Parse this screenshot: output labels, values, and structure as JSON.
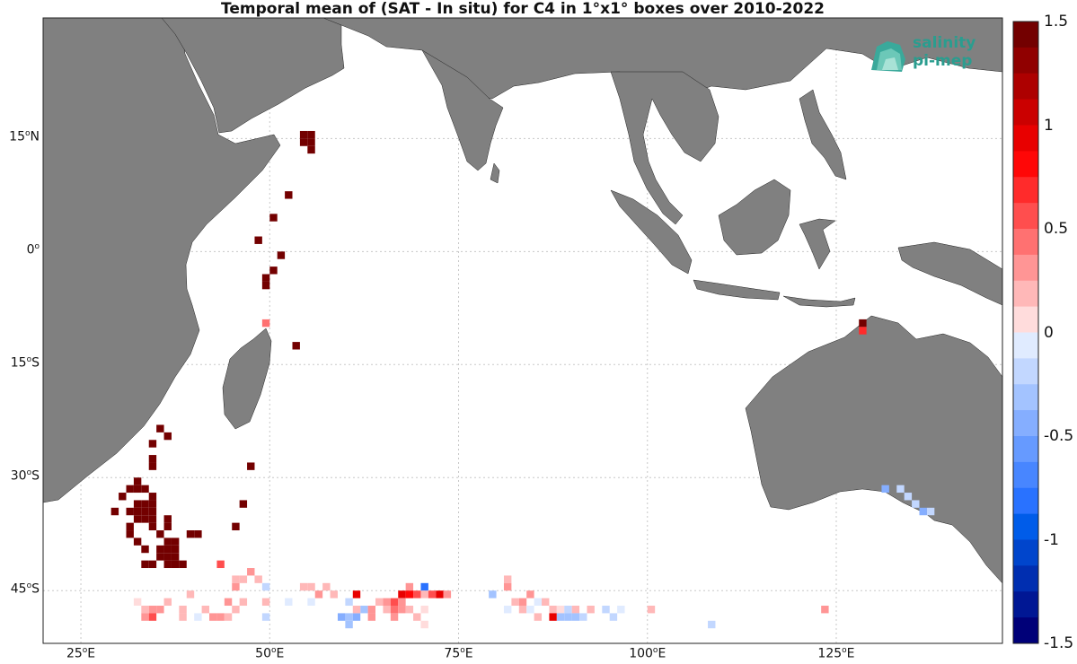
{
  "title": "Temporal mean of (SAT - In situ) for C4 in 1°x1° boxes over 2010-2022",
  "logo": {
    "line1": "salinity",
    "line2": "pi-mep",
    "color": "#2a9d8f"
  },
  "colors": {
    "land": "#808080",
    "ocean": "#ffffff",
    "grid": "#c8c8c8"
  },
  "map": {
    "lon_range": [
      20,
      147
    ],
    "lat_range": [
      -52,
      31
    ],
    "lon_ticks": [
      {
        "value": 25,
        "num": "25",
        "unit": "E"
      },
      {
        "value": 50,
        "num": "50",
        "unit": "E"
      },
      {
        "value": 75,
        "num": "75",
        "unit": "E"
      },
      {
        "value": 100,
        "num": "100",
        "unit": "E"
      },
      {
        "value": 125,
        "num": "125",
        "unit": "E"
      }
    ],
    "lat_ticks": [
      {
        "value": 15,
        "num": "15",
        "unit": "N"
      },
      {
        "value": 0,
        "num": "0",
        "unit": ""
      },
      {
        "value": -15,
        "num": "15",
        "unit": "S"
      },
      {
        "value": -30,
        "num": "30",
        "unit": "S"
      },
      {
        "value": -45,
        "num": "45",
        "unit": "S"
      }
    ],
    "degree_symbol": "o"
  },
  "colorbar": {
    "range": [
      -1.5,
      1.5
    ],
    "ticks": [
      "1.5",
      "1",
      "0.5",
      "0",
      "-0.5",
      "-1",
      "-1.5"
    ],
    "tick_values": [
      1.5,
      1,
      0.5,
      0,
      -0.5,
      -1,
      -1.5
    ],
    "levels": 24
  },
  "chart_data": {
    "type": "heatmap",
    "title": "Temporal mean of (SAT - In situ) for C4 in 1°x1° boxes over 2010-2022",
    "cells": [
      [
        54,
        15,
        1.5
      ],
      [
        55,
        15,
        1.5
      ],
      [
        55,
        14,
        1.5
      ],
      [
        54,
        14,
        1.5
      ],
      [
        55,
        13,
        1.5
      ],
      [
        52,
        7,
        1.5
      ],
      [
        50,
        4,
        1.5
      ],
      [
        48,
        1,
        1.5
      ],
      [
        51,
        -1,
        1.5
      ],
      [
        49,
        -4,
        1.5
      ],
      [
        49,
        -5,
        1.5
      ],
      [
        50,
        -3,
        1.5
      ],
      [
        49,
        -10,
        0.4
      ],
      [
        53,
        -13,
        1.5
      ],
      [
        128,
        -10,
        1.5
      ],
      [
        128,
        -11,
        0.7
      ],
      [
        35,
        -24,
        1.5
      ],
      [
        36,
        -25,
        1.5
      ],
      [
        34,
        -26,
        1.5
      ],
      [
        34,
        -28,
        1.5
      ],
      [
        34,
        -29,
        1.5
      ],
      [
        47,
        -29,
        1.5
      ],
      [
        32,
        -31,
        1.5
      ],
      [
        31,
        -32,
        1.5
      ],
      [
        32,
        -32,
        1.5
      ],
      [
        33,
        -32,
        1.5
      ],
      [
        30,
        -33,
        1.5
      ],
      [
        34,
        -33,
        1.5
      ],
      [
        32,
        -34,
        1.5
      ],
      [
        33,
        -34,
        1.5
      ],
      [
        34,
        -34,
        1.5
      ],
      [
        46,
        -34,
        1.5
      ],
      [
        29,
        -35,
        1.5
      ],
      [
        31,
        -35,
        1.5
      ],
      [
        32,
        -35,
        1.5
      ],
      [
        33,
        -35,
        1.5
      ],
      [
        34,
        -35,
        1.5
      ],
      [
        32,
        -36,
        1.5
      ],
      [
        33,
        -36,
        1.5
      ],
      [
        34,
        -36,
        1.5
      ],
      [
        36,
        -36,
        1.5
      ],
      [
        31,
        -37,
        1.5
      ],
      [
        34,
        -37,
        1.5
      ],
      [
        36,
        -37,
        1.5
      ],
      [
        45,
        -37,
        1.5
      ],
      [
        31,
        -38,
        1.5
      ],
      [
        39,
        -38,
        1.5
      ],
      [
        40,
        -38,
        1.5
      ],
      [
        35,
        -38,
        1.5
      ],
      [
        32,
        -39,
        1.5
      ],
      [
        36,
        -39,
        1.5
      ],
      [
        37,
        -39,
        1.5
      ],
      [
        35,
        -40,
        1.5
      ],
      [
        36,
        -40,
        1.5
      ],
      [
        37,
        -40,
        1.5
      ],
      [
        33,
        -40,
        1.5
      ],
      [
        35,
        -41,
        1.5
      ],
      [
        36,
        -41,
        1.5
      ],
      [
        37,
        -41,
        1.5
      ],
      [
        33,
        -42,
        1.5
      ],
      [
        34,
        -42,
        1.5
      ],
      [
        36,
        -42,
        1.5
      ],
      [
        37,
        -42,
        1.5
      ],
      [
        38,
        -42,
        1.5
      ],
      [
        43,
        -42,
        0.5
      ],
      [
        47,
        -43,
        0.3
      ],
      [
        46,
        -44,
        0.2
      ],
      [
        45,
        -44,
        0.15
      ],
      [
        48,
        -44,
        0.2
      ],
      [
        45,
        -45,
        0.3
      ],
      [
        49,
        -45,
        -0.15
      ],
      [
        55,
        -45,
        0.2
      ],
      [
        54,
        -45,
        0.15
      ],
      [
        57,
        -45,
        0.2
      ],
      [
        61,
        -46,
        0.9
      ],
      [
        58,
        -46,
        0.2
      ],
      [
        56,
        -46,
        0.3
      ],
      [
        68,
        -45,
        0.3
      ],
      [
        70,
        -45,
        -0.8
      ],
      [
        67,
        -46,
        0.9
      ],
      [
        68,
        -46,
        0.8
      ],
      [
        69,
        -46,
        0.5
      ],
      [
        70,
        -46,
        0.2
      ],
      [
        71,
        -46,
        0.5
      ],
      [
        72,
        -46,
        0.9
      ],
      [
        73,
        -46,
        0.3
      ],
      [
        81,
        -44,
        0.15
      ],
      [
        81,
        -45,
        0.25
      ],
      [
        79,
        -46,
        -0.35
      ],
      [
        84,
        -46,
        0.25
      ],
      [
        39,
        -46,
        0.2
      ],
      [
        32,
        -47,
        0.1
      ],
      [
        33,
        -48,
        0.15
      ],
      [
        34,
        -48,
        0.3
      ],
      [
        35,
        -48,
        0.3
      ],
      [
        36,
        -47,
        0.15
      ],
      [
        38,
        -48,
        0.2
      ],
      [
        41,
        -48,
        0.15
      ],
      [
        44,
        -47,
        0.25
      ],
      [
        45,
        -48,
        0.2
      ],
      [
        46,
        -47,
        0.15
      ],
      [
        49,
        -47,
        0.15
      ],
      [
        52,
        -47,
        -0.1
      ],
      [
        55,
        -47,
        -0.1
      ],
      [
        60,
        -47,
        -0.2
      ],
      [
        64,
        -47,
        0.2
      ],
      [
        65,
        -47,
        0.3
      ],
      [
        66,
        -47,
        0.5
      ],
      [
        67,
        -47,
        0.3
      ],
      [
        70,
        -48,
        0.1
      ],
      [
        82,
        -47,
        0.2
      ],
      [
        83,
        -47,
        0.3
      ],
      [
        85,
        -47,
        -0.1
      ],
      [
        86,
        -47,
        0.15
      ],
      [
        33,
        -49,
        0.3
      ],
      [
        34,
        -49,
        0.5
      ],
      [
        38,
        -49,
        0.2
      ],
      [
        40,
        -49,
        -0.1
      ],
      [
        42,
        -49,
        0.3
      ],
      [
        43,
        -49,
        0.3
      ],
      [
        44,
        -49,
        0.2
      ],
      [
        49,
        -49,
        -0.2
      ],
      [
        59,
        -49,
        -0.4
      ],
      [
        60,
        -49,
        -0.35
      ],
      [
        61,
        -49,
        -0.4
      ],
      [
        62,
        -48,
        -0.3
      ],
      [
        61,
        -48,
        0.2
      ],
      [
        63,
        -48,
        0.3
      ],
      [
        65,
        -48,
        0.2
      ],
      [
        66,
        -48,
        0.4
      ],
      [
        67,
        -48,
        0.3
      ],
      [
        68,
        -48,
        0.2
      ],
      [
        81,
        -48,
        -0.1
      ],
      [
        83,
        -48,
        0.2
      ],
      [
        84,
        -48,
        -0.1
      ],
      [
        87,
        -48,
        0.2
      ],
      [
        88,
        -48,
        0.1
      ],
      [
        89,
        -48,
        -0.15
      ],
      [
        90,
        -48,
        0.15
      ],
      [
        92,
        -48,
        0.15
      ],
      [
        94,
        -48,
        -0.15
      ],
      [
        96,
        -48,
        -0.1
      ],
      [
        100,
        -48,
        0.2
      ],
      [
        63,
        -49,
        0.25
      ],
      [
        66,
        -49,
        0.3
      ],
      [
        69,
        -49,
        0.15
      ],
      [
        85,
        -49,
        0.2
      ],
      [
        87,
        -49,
        0.9
      ],
      [
        88,
        -49,
        -0.35
      ],
      [
        89,
        -49,
        -0.3
      ],
      [
        90,
        -49,
        -0.35
      ],
      [
        91,
        -49,
        -0.2
      ],
      [
        95,
        -49,
        -0.2
      ],
      [
        60,
        -50,
        -0.3
      ],
      [
        70,
        -50,
        0.1
      ],
      [
        108,
        -50,
        -0.2
      ],
      [
        123,
        -48,
        0.35
      ],
      [
        131,
        -32,
        -0.4
      ],
      [
        133,
        -32,
        -0.2
      ],
      [
        134,
        -33,
        -0.15
      ],
      [
        135,
        -34,
        -0.25
      ],
      [
        136,
        -35,
        -0.45
      ],
      [
        137,
        -35,
        -0.25
      ]
    ]
  }
}
